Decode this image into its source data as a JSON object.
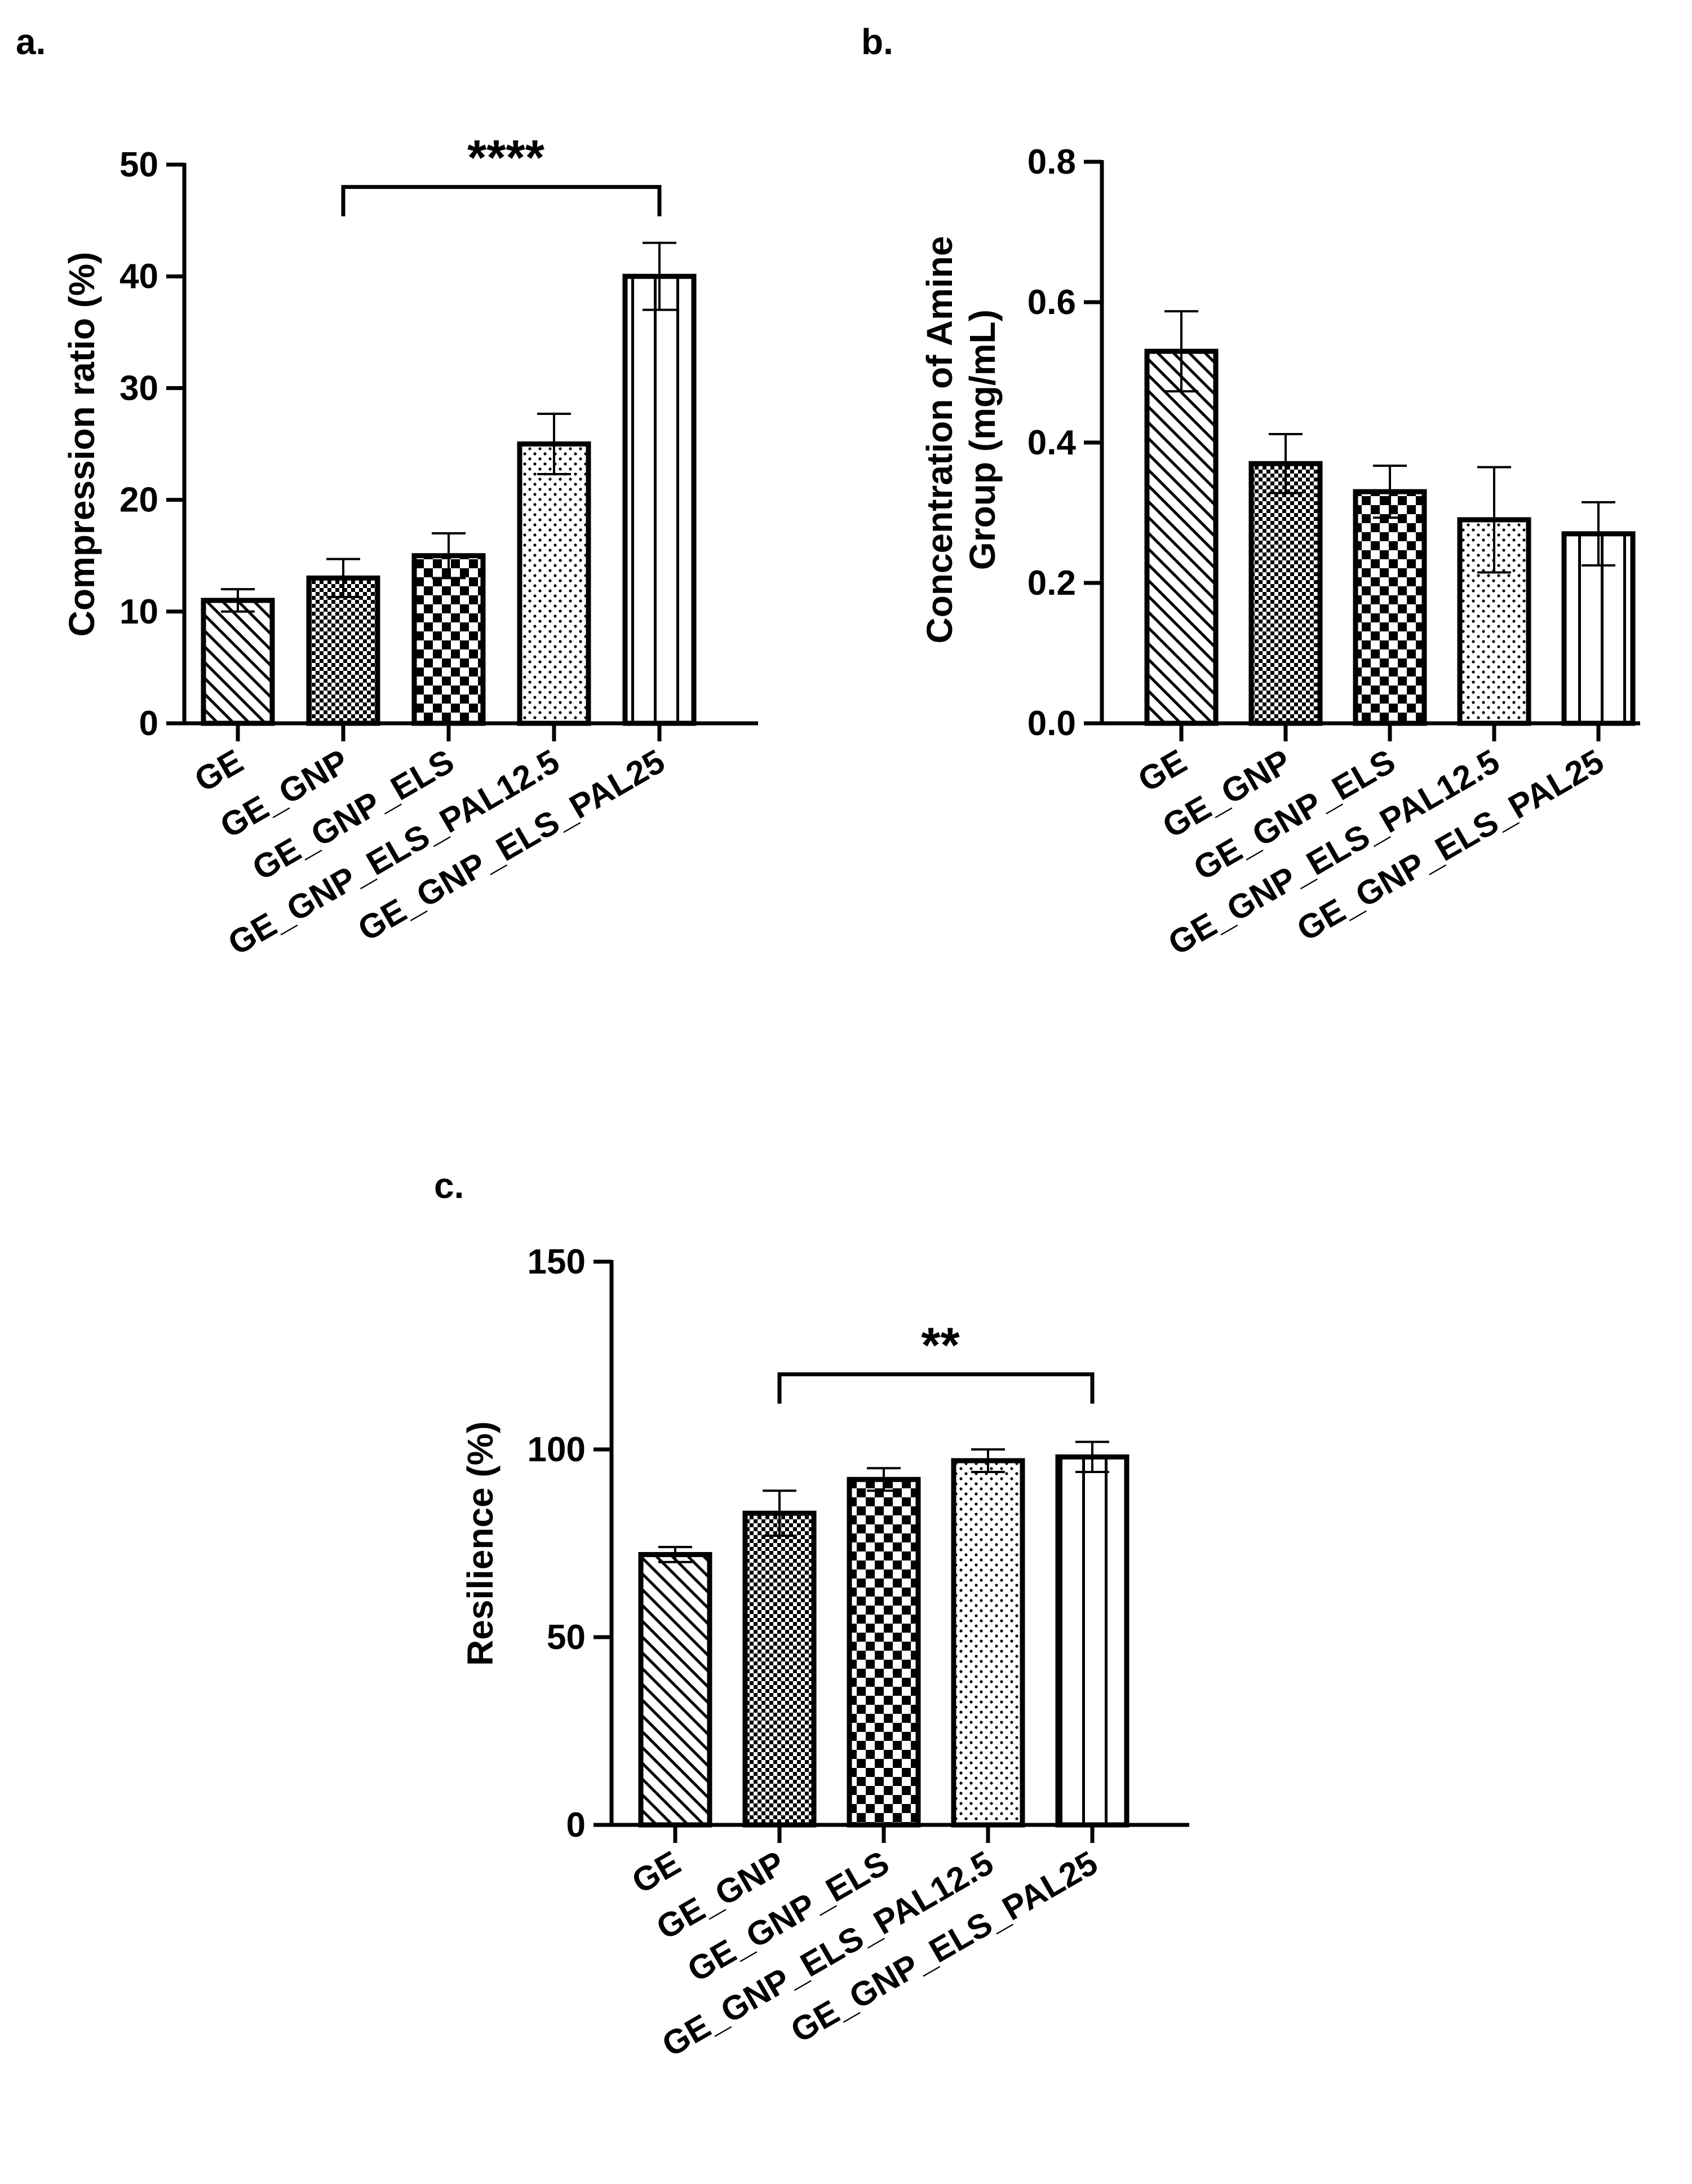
{
  "chart_data": [
    {
      "panel": "a.",
      "type": "bar",
      "categories": [
        "GE",
        "GE_GNP",
        "GE_GNP_ELS",
        "GE_GNP_ELS_PAL12.5",
        "GE_GNP_ELS_PAL25"
      ],
      "values": [
        11,
        13,
        15,
        25,
        40
      ],
      "errors": [
        1,
        1.7,
        2,
        2.7,
        3
      ],
      "ylabel": [
        "Compression ratio (%)"
      ],
      "xlabel": "",
      "ylim": [
        0,
        50
      ],
      "yticks": [
        0,
        10,
        20,
        30,
        40,
        50
      ],
      "ytick_labels": [
        "0",
        "10",
        "20",
        "30",
        "40",
        "50"
      ],
      "significance": {
        "from": 1,
        "to": 4,
        "label": "****",
        "y": 48
      }
    },
    {
      "panel": "b.",
      "type": "bar",
      "categories": [
        "GE",
        "GE_GNP",
        "GE_GNP_ELS",
        "GE_GNP_ELS_PAL12.5",
        "GE_GNP_ELS_PAL25"
      ],
      "values": [
        0.53,
        0.37,
        0.33,
        0.29,
        0.27
      ],
      "errors": [
        0.057,
        0.042,
        0.037,
        0.075,
        0.045
      ],
      "ylabel": [
        "Concentration of Amine",
        "Group (mg/mL)"
      ],
      "xlabel": "",
      "ylim": [
        0,
        0.8
      ],
      "yticks": [
        0,
        0.2,
        0.4,
        0.6,
        0.8
      ],
      "ytick_labels": [
        "0.0",
        "0.2",
        "0.4",
        "0.6",
        "0.8"
      ],
      "significance": null
    },
    {
      "panel": "c.",
      "type": "bar",
      "categories": [
        "GE",
        "GE_GNP",
        "GE_GNP_ELS",
        "GE_GNP_ELS_PAL12.5",
        "GE_GNP_ELS_PAL25"
      ],
      "values": [
        72,
        83,
        92,
        97,
        98
      ],
      "errors": [
        2,
        6,
        3,
        3,
        4
      ],
      "ylabel": [
        "Resilience (%)"
      ],
      "xlabel": "",
      "ylim": [
        0,
        150
      ],
      "yticks": [
        0,
        50,
        100,
        150
      ],
      "ytick_labels": [
        "0",
        "50",
        "100",
        "150"
      ],
      "significance": {
        "from": 1,
        "to": 4,
        "label": "**",
        "y": 120
      }
    }
  ],
  "bar_patterns": [
    "diagonal-hatch",
    "fine-checker",
    "coarse-checker",
    "dotted",
    "vertical-stripes"
  ],
  "colors": {
    "ink": "#000000",
    "background": "#ffffff"
  }
}
